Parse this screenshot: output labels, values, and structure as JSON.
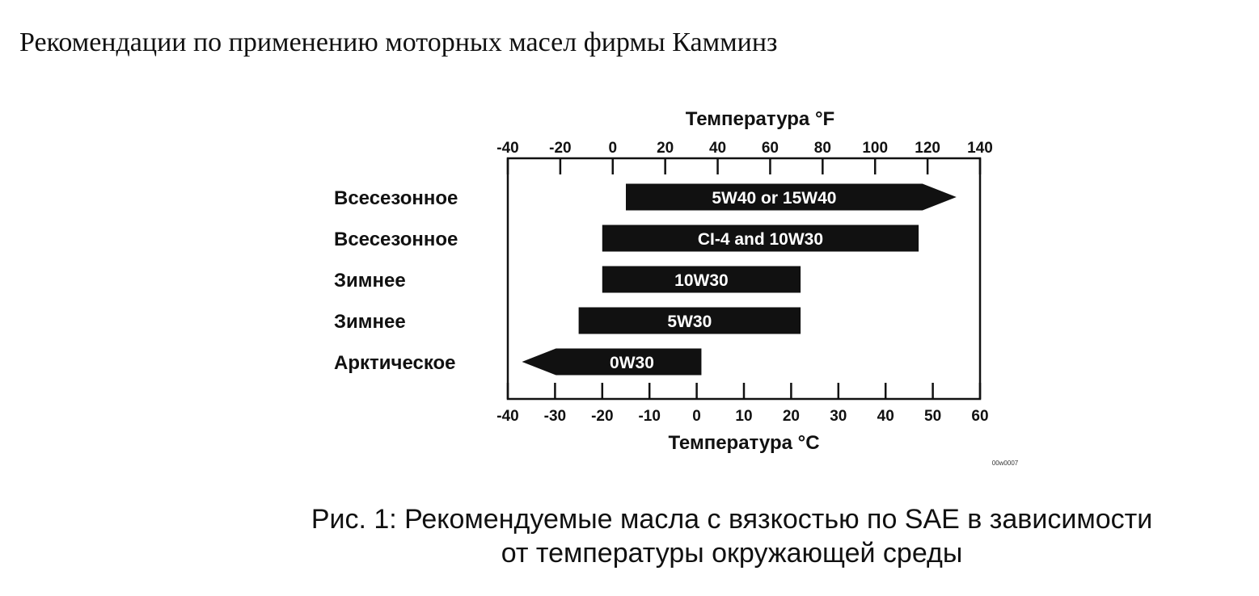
{
  "page_title": "Рекомендации по применению моторных масел фирмы Камминз",
  "caption": {
    "line1": "Рис. 1: Рекомендуемые масла с вязкостью по SAE в зависимости",
    "line2": "от температуры окружающей среды"
  },
  "figure_code": "00w0007",
  "colors": {
    "bar": "#111111",
    "frame": "#111111",
    "text": "#111111"
  },
  "chart_data": {
    "type": "bar",
    "orientation": "horizontal-range",
    "top_axis": {
      "title": "Температура °F",
      "ticks": [
        -40,
        -20,
        0,
        20,
        40,
        60,
        80,
        100,
        120,
        140
      ],
      "range": [
        -40,
        140
      ]
    },
    "bottom_axis": {
      "title": "Температура °C",
      "ticks": [
        -40,
        -30,
        -20,
        -10,
        0,
        10,
        20,
        30,
        40,
        50,
        60
      ],
      "range": [
        -40,
        60
      ]
    },
    "series": [
      {
        "category": "Всесезонное",
        "label": "5W40 or 15W40",
        "start_c": -15,
        "end_c": 55,
        "open_end": "right"
      },
      {
        "category": "Всесезонное",
        "label": "CI-4 and 10W30",
        "start_c": -20,
        "end_c": 47,
        "open_end": "none"
      },
      {
        "category": "Зимнее",
        "label": "10W30",
        "start_c": -20,
        "end_c": 22,
        "open_end": "none"
      },
      {
        "category": "Зимнее",
        "label": "5W30",
        "start_c": -25,
        "end_c": 22,
        "open_end": "none"
      },
      {
        "category": "Арктическое",
        "label": "0W30",
        "start_c": -37,
        "end_c": 1,
        "open_end": "left"
      }
    ]
  }
}
